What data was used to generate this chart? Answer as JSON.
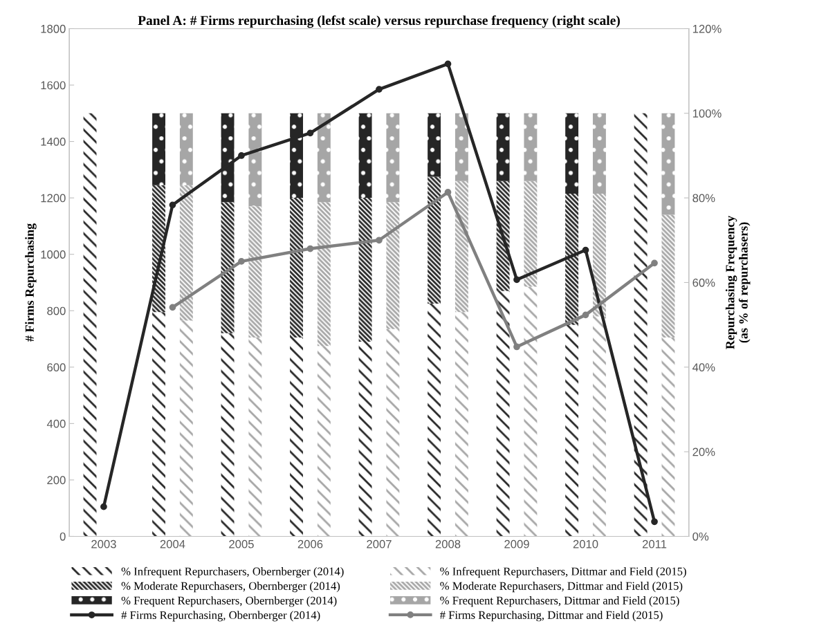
{
  "chart_data": {
    "type": "bar",
    "title": "Panel A: # Firms repurchasing (lefst scale) versus repurchase frequency (right scale)",
    "ylabel": "# Firms Repurchasing",
    "y2label": "Repurchasing Frequency\n(as % of repurchasers)",
    "categories": [
      "2003",
      "2004",
      "2005",
      "2006",
      "2007",
      "2008",
      "2009",
      "2010",
      "2011"
    ],
    "grid": false,
    "legend": "bottom",
    "marker": "circle",
    "line_style": "solid",
    "ylim": [
      0,
      1800
    ],
    "yticks": [
      0,
      200,
      400,
      600,
      800,
      1000,
      1200,
      1400,
      1600,
      1800
    ],
    "y2lim": [
      0,
      120
    ],
    "y2ticks": [
      {
        "value": 0,
        "label": "0%"
      },
      {
        "value": 20,
        "label": "20%"
      },
      {
        "value": 40,
        "label": "40%"
      },
      {
        "value": 60,
        "label": "60%"
      },
      {
        "value": 80,
        "label": "80%"
      },
      {
        "value": 100,
        "label": "100%"
      },
      {
        "value": 120,
        "label": "120%"
      }
    ],
    "series": [
      {
        "axis": "y2",
        "name": "% Infrequent Repurchasers, Obernberger (2014)",
        "color": "#262626",
        "values": [
          100,
          53,
          48,
          47,
          46,
          55,
          58,
          50,
          100
        ],
        "base": [
          0,
          0,
          0,
          0,
          0,
          0,
          0,
          0,
          0
        ]
      },
      {
        "axis": "y2",
        "name": "% Moderate Repurchasers, Obernberger (2014)",
        "color": "#262626",
        "values": [
          null,
          30,
          31,
          33,
          34,
          30,
          26,
          31,
          null
        ],
        "base": [
          null,
          53,
          48,
          47,
          46,
          55,
          58,
          50,
          null
        ]
      },
      {
        "axis": "y2",
        "name": "% Frequent Repurchasers, Obernberger (2014)",
        "color": "#262626",
        "values": [
          null,
          17,
          21,
          20,
          20,
          15,
          16,
          19,
          null
        ],
        "base": [
          null,
          83,
          79,
          80,
          80,
          85,
          84,
          81,
          null
        ]
      },
      {
        "type": "line",
        "axis": "y",
        "name": "# Firms Repurchasing, Obernberger (2014)",
        "color": "#262626",
        "values": [
          105,
          1175,
          1350,
          1430,
          1585,
          1675,
          910,
          1015,
          52
        ]
      },
      {
        "axis": "y2",
        "name": "% Infrequent Repurchasers, Dittmar and Field (2015)",
        "color": "#a6a6a6",
        "values": [
          null,
          51,
          47,
          45,
          49,
          53,
          59,
          52,
          47
        ],
        "base": [
          null,
          0,
          0,
          0,
          0,
          0,
          0,
          0,
          0
        ]
      },
      {
        "axis": "y2",
        "name": "% Moderate Repurchasers, Dittmar and Field (2015)",
        "color": "#a6a6a6",
        "values": [
          null,
          32,
          31,
          34,
          30,
          31,
          25,
          29,
          29
        ],
        "base": [
          null,
          51,
          47,
          45,
          49,
          53,
          59,
          52,
          47
        ]
      },
      {
        "axis": "y2",
        "name": "% Frequent Repurchasers, Dittmar and Field (2015)",
        "color": "#a6a6a6",
        "values": [
          null,
          17,
          22,
          21,
          21,
          16,
          16,
          19,
          24
        ],
        "base": [
          null,
          83,
          78,
          79,
          79,
          84,
          84,
          81,
          76
        ]
      },
      {
        "type": "line",
        "axis": "y",
        "name": "# Firms Repurchasing, Dittmar and Field (2015)",
        "color": "#808080",
        "values": [
          null,
          812,
          975,
          1020,
          1050,
          1220,
          672,
          785,
          969
        ]
      }
    ]
  }
}
